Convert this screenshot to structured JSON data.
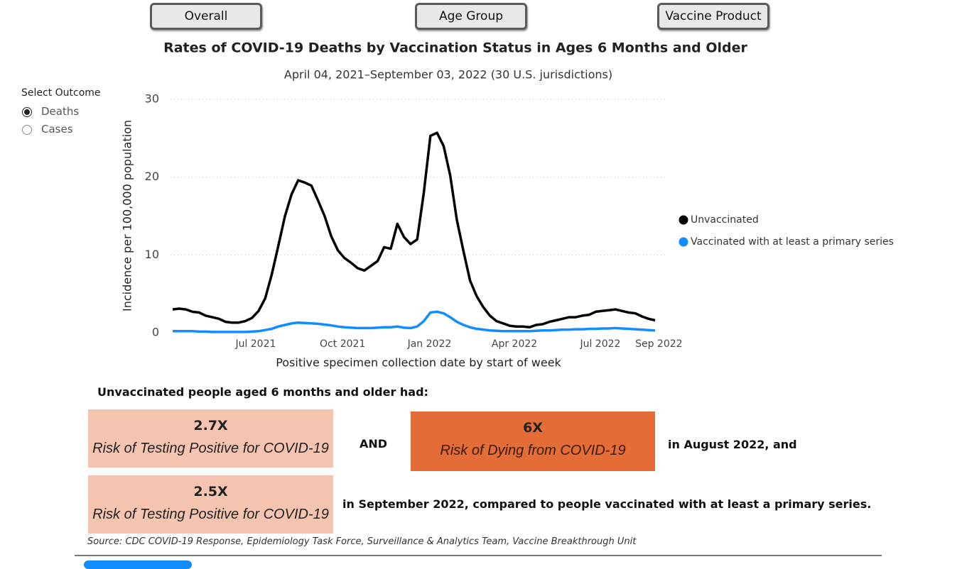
{
  "buttons": [
    "Overall",
    "Age Group",
    "Vaccine Product"
  ],
  "outcome_selector": {
    "label": "Select Outcome",
    "options": [
      "Deaths",
      "Cases"
    ],
    "selected": "Deaths"
  },
  "chart_data": {
    "type": "line",
    "title": "Rates of COVID-19 Deaths by Vaccination Status in Ages 6 Months and Older",
    "subtitle": "April 04, 2021–September 03, 2022 (30 U.S. jurisdictions)",
    "x_label": "Positive specimen collection date by start of week",
    "y_label": "Incidence per 100,000 population",
    "x": [
      "2021-04-04",
      "2021-04-11",
      "2021-04-18",
      "2021-04-25",
      "2021-05-02",
      "2021-05-09",
      "2021-05-16",
      "2021-05-23",
      "2021-05-30",
      "2021-06-06",
      "2021-06-13",
      "2021-06-20",
      "2021-06-27",
      "2021-07-04",
      "2021-07-11",
      "2021-07-18",
      "2021-07-25",
      "2021-08-01",
      "2021-08-08",
      "2021-08-15",
      "2021-08-22",
      "2021-08-29",
      "2021-09-05",
      "2021-09-12",
      "2021-09-19",
      "2021-09-26",
      "2021-10-03",
      "2021-10-10",
      "2021-10-17",
      "2021-10-24",
      "2021-10-31",
      "2021-11-07",
      "2021-11-14",
      "2021-11-21",
      "2021-11-28",
      "2021-12-05",
      "2021-12-12",
      "2021-12-19",
      "2021-12-26",
      "2022-01-02",
      "2022-01-09",
      "2022-01-16",
      "2022-01-23",
      "2022-01-30",
      "2022-02-06",
      "2022-02-13",
      "2022-02-20",
      "2022-02-27",
      "2022-03-06",
      "2022-03-13",
      "2022-03-20",
      "2022-03-27",
      "2022-04-03",
      "2022-04-10",
      "2022-04-17",
      "2022-04-24",
      "2022-05-01",
      "2022-05-08",
      "2022-05-15",
      "2022-05-22",
      "2022-05-29",
      "2022-06-05",
      "2022-06-12",
      "2022-06-19",
      "2022-06-26",
      "2022-07-03",
      "2022-07-10",
      "2022-07-17",
      "2022-07-24",
      "2022-07-31",
      "2022-08-07",
      "2022-08-14",
      "2022-08-21",
      "2022-08-28"
    ],
    "series": [
      {
        "name": "Unvaccinated",
        "color": "#000000",
        "values": [
          3.0,
          3.1,
          3.0,
          2.7,
          2.6,
          2.2,
          2.0,
          1.8,
          1.4,
          1.3,
          1.3,
          1.5,
          1.9,
          2.8,
          4.4,
          7.5,
          11.2,
          15.0,
          17.8,
          19.6,
          19.3,
          18.9,
          17.0,
          15.0,
          12.4,
          10.6,
          9.6,
          9.0,
          8.3,
          8.0,
          8.6,
          9.2,
          11.0,
          10.8,
          14.0,
          12.3,
          11.4,
          12.0,
          18.0,
          25.3,
          25.7,
          24.0,
          20.2,
          14.5,
          10.5,
          6.7,
          4.7,
          3.3,
          2.2,
          1.5,
          1.2,
          0.9,
          0.8,
          0.8,
          0.7,
          1.0,
          1.1,
          1.4,
          1.6,
          1.8,
          2.0,
          2.0,
          2.2,
          2.3,
          2.7,
          2.8,
          2.9,
          3.0,
          2.8,
          2.6,
          2.5,
          2.1,
          1.8,
          1.6
        ]
      },
      {
        "name": "Vaccinated with at least a primary series",
        "color": "#118dff",
        "values": [
          0.2,
          0.2,
          0.2,
          0.2,
          0.15,
          0.15,
          0.1,
          0.1,
          0.1,
          0.1,
          0.1,
          0.1,
          0.15,
          0.2,
          0.35,
          0.5,
          0.8,
          1.0,
          1.2,
          1.3,
          1.25,
          1.2,
          1.15,
          1.05,
          0.95,
          0.8,
          0.7,
          0.65,
          0.6,
          0.6,
          0.6,
          0.65,
          0.7,
          0.7,
          0.8,
          0.65,
          0.6,
          0.8,
          1.5,
          2.6,
          2.7,
          2.5,
          2.0,
          1.4,
          1.0,
          0.7,
          0.5,
          0.4,
          0.3,
          0.25,
          0.2,
          0.2,
          0.2,
          0.2,
          0.2,
          0.25,
          0.3,
          0.3,
          0.35,
          0.4,
          0.4,
          0.45,
          0.45,
          0.5,
          0.5,
          0.55,
          0.55,
          0.6,
          0.55,
          0.5,
          0.45,
          0.4,
          0.35,
          0.3
        ]
      }
    ],
    "xlim": [
      "2021-04-04",
      "2022-09-03"
    ],
    "xticks": [
      {
        "value": "2021-07",
        "label": "Jul 2021"
      },
      {
        "value": "2021-10",
        "label": "Oct 2021"
      },
      {
        "value": "2022-01",
        "label": "Jan 2022"
      },
      {
        "value": "2022-04",
        "label": "Apr 2022"
      },
      {
        "value": "2022-07",
        "label": "Jul 2022"
      },
      {
        "value": "2022-09",
        "label": "Sep 2022"
      }
    ],
    "ylim": [
      0,
      30
    ],
    "yticks": [
      0,
      10,
      20,
      30
    ],
    "grid": true,
    "legend": "right"
  },
  "summary": {
    "intro": "Unvaccinated people aged 6 months and older had:",
    "box1": {
      "value": "2.7X",
      "text": "Risk of Testing Positive for COVID-19"
    },
    "and": "AND",
    "box2": {
      "value": "6X",
      "text": "Risk of Dying from COVID-19"
    },
    "after_box2": "in August 2022, and",
    "box3": {
      "value": "2.5X",
      "text": "Risk of Testing Positive for COVID-19"
    },
    "after_box3": "in September 2022, compared to people vaccinated with at least a primary series."
  },
  "source": "Source: CDC COVID-19 Response, Epidemiology Task Force, Surveillance & Analytics Team, Vaccine Breakthrough Unit"
}
